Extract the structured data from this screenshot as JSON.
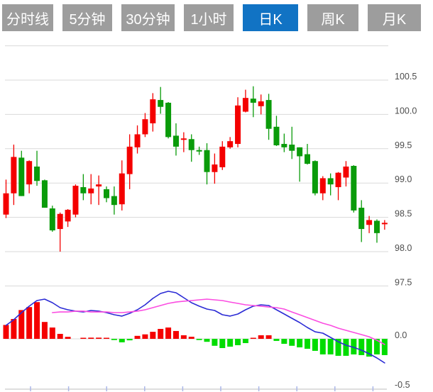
{
  "toolbar": {
    "tabs": [
      {
        "id": "tab-timeline",
        "label": "分时线",
        "active": false
      },
      {
        "id": "tab-5min",
        "label": "5分钟",
        "active": false
      },
      {
        "id": "tab-30min",
        "label": "30分钟",
        "active": false
      },
      {
        "id": "tab-1hour",
        "label": "1小时",
        "active": false
      },
      {
        "id": "tab-daily-k",
        "label": "日K",
        "active": true
      },
      {
        "id": "tab-weekly-k",
        "label": "周K",
        "active": false
      },
      {
        "id": "tab-monthly-k",
        "label": "月K",
        "active": false
      }
    ]
  },
  "colors": {
    "up": "#f40000",
    "down": "#0a9b0a",
    "hist_up": "#f40000",
    "hist_down": "#00dc00",
    "diff_line": "#2b2bd5",
    "dea_line": "#fb4ce1",
    "grid": "#dadada",
    "axis_text": "#4d4d4d",
    "bottom_axis": "#c9c9c9",
    "bottom_tick": "#aab6e8",
    "tab_bg": "#9d9d9d",
    "tab_active_bg": "#1173c4",
    "tab_text": "#ffffff"
  },
  "chart_data": {
    "type": "candlestick",
    "title": "",
    "panels": [
      {
        "name": "price",
        "ylabels": [
          "100.5",
          "100.0",
          "99.5",
          "99.0",
          "98.5",
          "98.0",
          "97.5"
        ],
        "label_prices": [
          100.5,
          100.0,
          99.5,
          99.0,
          98.5,
          98.0,
          97.5
        ],
        "grid_prices": [
          101.0,
          100.5,
          100.0,
          99.5,
          99.0,
          98.5,
          98.0,
          97.5
        ],
        "ylim": [
          97.25,
          101.1
        ],
        "grid": true,
        "axis_side": "right"
      },
      {
        "name": "macd",
        "ylabels": [
          "0.0",
          "-0.5"
        ],
        "label_values": [
          0.0,
          -0.5
        ],
        "ylim": [
          -0.55,
          0.52
        ],
        "axis_side": "right"
      }
    ],
    "candles_ohlc": [
      [
        98.54,
        99.05,
        98.49,
        98.85
      ],
      [
        98.85,
        99.56,
        98.68,
        99.38
      ],
      [
        99.37,
        99.47,
        98.81,
        98.81
      ],
      [
        98.98,
        99.33,
        98.85,
        99.32
      ],
      [
        99.24,
        99.47,
        98.96,
        99.03
      ],
      [
        99.04,
        99.05,
        98.64,
        98.64
      ],
      [
        98.63,
        98.67,
        98.29,
        98.31
      ],
      [
        98.33,
        98.57,
        98.0,
        98.55
      ],
      [
        98.44,
        98.62,
        98.36,
        98.61
      ],
      [
        98.54,
        98.98,
        98.5,
        98.96
      ],
      [
        98.94,
        99.13,
        98.75,
        98.85
      ],
      [
        98.85,
        99.13,
        98.69,
        98.92
      ],
      [
        98.95,
        99.11,
        98.68,
        98.98
      ],
      [
        98.91,
        98.95,
        98.72,
        98.78
      ],
      [
        98.81,
        98.95,
        98.54,
        98.68
      ],
      [
        98.69,
        99.33,
        98.6,
        99.14
      ],
      [
        99.13,
        99.71,
        98.91,
        99.53
      ],
      [
        99.52,
        99.84,
        99.43,
        99.71
      ],
      [
        99.71,
        100.02,
        99.67,
        99.93
      ],
      [
        99.87,
        100.31,
        99.75,
        100.22
      ],
      [
        100.21,
        100.4,
        100.01,
        100.11
      ],
      [
        100.17,
        100.18,
        99.65,
        99.67
      ],
      [
        99.69,
        99.87,
        99.4,
        99.53
      ],
      [
        99.63,
        99.74,
        99.45,
        99.65
      ],
      [
        99.64,
        99.71,
        99.31,
        99.48
      ],
      [
        99.48,
        99.53,
        99.41,
        99.46
      ],
      [
        99.48,
        99.58,
        98.98,
        99.16
      ],
      [
        99.16,
        99.43,
        98.99,
        99.27
      ],
      [
        99.23,
        99.61,
        99.19,
        99.53
      ],
      [
        99.52,
        99.67,
        99.5,
        99.61
      ],
      [
        99.57,
        100.25,
        99.52,
        100.13
      ],
      [
        100.04,
        100.36,
        100.03,
        100.24
      ],
      [
        100.23,
        100.41,
        99.96,
        100.17
      ],
      [
        100.12,
        100.29,
        100.0,
        100.19
      ],
      [
        100.21,
        100.3,
        99.63,
        99.79
      ],
      [
        99.82,
        99.98,
        99.54,
        99.55
      ],
      [
        99.57,
        99.72,
        99.45,
        99.52
      ],
      [
        99.56,
        99.82,
        99.35,
        99.47
      ],
      [
        99.52,
        99.52,
        99.02,
        99.39
      ],
      [
        99.42,
        99.57,
        99.27,
        99.28
      ],
      [
        99.32,
        99.33,
        98.82,
        98.85
      ],
      [
        98.85,
        99.1,
        98.75,
        99.07
      ],
      [
        99.07,
        99.14,
        98.82,
        98.98
      ],
      [
        98.94,
        99.16,
        98.75,
        99.15
      ],
      [
        99.08,
        99.32,
        98.95,
        99.24
      ],
      [
        99.25,
        99.26,
        98.57,
        98.6
      ],
      [
        98.64,
        98.75,
        98.14,
        98.33
      ],
      [
        98.39,
        98.52,
        98.27,
        98.46
      ],
      [
        98.45,
        98.47,
        98.13,
        98.27
      ],
      [
        98.4,
        98.46,
        98.32,
        98.42
      ]
    ],
    "macd": {
      "histogram": [
        0.14,
        0.2,
        0.29,
        0.32,
        0.37,
        0.17,
        0.114,
        0.05,
        0.02,
        0,
        0.01,
        0.012,
        0.012,
        0.01,
        -0.012,
        -0.035,
        -0.015,
        0.03,
        0.045,
        0.071,
        0.1,
        0.114,
        0.079,
        0.036,
        0.021,
        -0.012,
        -0.03,
        -0.07,
        -0.093,
        -0.079,
        -0.064,
        -0.043,
        0.01,
        0.036,
        0.036,
        -0.021,
        -0.05,
        -0.07,
        -0.086,
        -0.1,
        -0.121,
        -0.157,
        -0.157,
        -0.171,
        -0.171,
        -0.157,
        -0.164,
        -0.179,
        -0.157,
        -0.164
      ],
      "diff": [
        0.136,
        0.193,
        0.264,
        0.329,
        0.386,
        0.4,
        0.364,
        0.314,
        0.293,
        0.279,
        0.271,
        0.286,
        0.279,
        0.264,
        0.243,
        0.229,
        0.257,
        0.293,
        0.343,
        0.407,
        0.457,
        0.479,
        0.464,
        0.414,
        0.364,
        0.329,
        0.3,
        0.286,
        0.243,
        0.229,
        0.25,
        0.293,
        0.329,
        0.343,
        0.336,
        0.293,
        0.25,
        0.207,
        0.164,
        0.114,
        0.071,
        0.057,
        0.014,
        -0.029,
        -0.064,
        -0.086,
        -0.114,
        -0.15,
        -0.193,
        -0.243
      ],
      "dea": [
        null,
        null,
        null,
        null,
        null,
        null,
        0.264,
        0.271,
        0.271,
        0.279,
        0.279,
        0.271,
        0.271,
        0.271,
        0.264,
        0.264,
        0.271,
        0.279,
        0.293,
        0.314,
        0.336,
        0.357,
        0.371,
        0.379,
        0.386,
        0.393,
        0.4,
        0.393,
        0.386,
        0.371,
        0.357,
        0.343,
        0.336,
        0.329,
        0.321,
        0.314,
        0.3,
        0.271,
        0.243,
        0.214,
        0.186,
        0.157,
        0.136,
        0.107,
        0.086,
        0.064,
        0.043,
        0.021,
        -0.014,
        -0.057
      ]
    },
    "legend": [],
    "x_axis": {
      "labels_visible": false
    }
  }
}
